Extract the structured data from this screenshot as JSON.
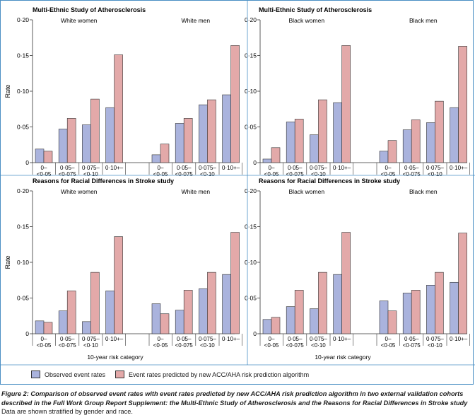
{
  "colors": {
    "observed": "#aab3dd",
    "predicted": "#e3a9a9",
    "axis": "#333333"
  },
  "chart_data": [
    {
      "type": "bar",
      "title": "Multi-Ethnic Study of Atherosclerosis",
      "ylabel": "Rate",
      "xlabel": "",
      "ylim": [
        0,
        0.2
      ],
      "yticks": [
        "0",
        "0·05",
        "0·10",
        "0·15",
        "0·20"
      ],
      "categories": [
        "0–<0·05",
        "0·05–<0·075",
        "0·075–<0·10",
        "0·10+"
      ],
      "groups": [
        {
          "name": "White women",
          "observed": [
            0.019,
            0.047,
            0.053,
            0.077
          ],
          "predicted": [
            0.016,
            0.062,
            0.089,
            0.151
          ]
        },
        {
          "name": "White men",
          "observed": [
            0.011,
            0.055,
            0.081,
            0.095
          ],
          "predicted": [
            0.026,
            0.062,
            0.088,
            0.164
          ]
        }
      ]
    },
    {
      "type": "bar",
      "title": "Multi-Ethnic Study of Atherosclerosis",
      "ylabel": "",
      "xlabel": "",
      "ylim": [
        0,
        0.2
      ],
      "yticks": [
        "0",
        "0·05",
        "0·10",
        "0·15",
        "0·20"
      ],
      "categories": [
        "0–<0·05",
        "0·05–<0·075",
        "0·075–<0·10",
        "0·10+"
      ],
      "groups": [
        {
          "name": "Black women",
          "observed": [
            0.005,
            0.057,
            0.039,
            0.084
          ],
          "predicted": [
            0.021,
            0.061,
            0.088,
            0.164
          ]
        },
        {
          "name": "Black men",
          "observed": [
            0.016,
            0.046,
            0.056,
            0.077
          ],
          "predicted": [
            0.031,
            0.06,
            0.086,
            0.163
          ]
        }
      ]
    },
    {
      "type": "bar",
      "title": "Reasons for Racial Differences in Stroke study",
      "ylabel": "Rate",
      "xlabel": "10-year risk category",
      "ylim": [
        0,
        0.2
      ],
      "yticks": [
        "0",
        "0·05",
        "0·10",
        "0·15",
        "0·20"
      ],
      "categories": [
        "0–<0·05",
        "0·05–<0·075",
        "0·075–<0·10",
        "0·10+"
      ],
      "groups": [
        {
          "name": "White women",
          "observed": [
            0.018,
            0.032,
            0.017,
            0.06
          ],
          "predicted": [
            0.016,
            0.06,
            0.086,
            0.136
          ]
        },
        {
          "name": "White men",
          "observed": [
            0.042,
            0.033,
            0.063,
            0.083
          ],
          "predicted": [
            0.028,
            0.061,
            0.086,
            0.142
          ]
        }
      ]
    },
    {
      "type": "bar",
      "title": "Reasons for Racial Differences in Stroke study",
      "ylabel": "",
      "xlabel": "10-year risk category",
      "ylim": [
        0,
        0.2
      ],
      "yticks": [
        "0",
        "0·05",
        "0·10",
        "0·15",
        "0·20"
      ],
      "categories": [
        "0–<0·05",
        "0·05–<0·075",
        "0·075–<0·10",
        "0·10+"
      ],
      "groups": [
        {
          "name": "Black women",
          "observed": [
            0.02,
            0.038,
            0.035,
            0.083
          ],
          "predicted": [
            0.023,
            0.061,
            0.086,
            0.142
          ]
        },
        {
          "name": "Black men",
          "observed": [
            0.046,
            0.057,
            0.068,
            0.072
          ],
          "predicted": [
            0.032,
            0.061,
            0.086,
            0.141
          ]
        }
      ]
    }
  ],
  "legend": {
    "observed_label": "Observed event rates",
    "predicted_label": "Event rates predicted by new ACC/AHA risk prediction algorithm"
  },
  "caption": {
    "label": "Figure 2:",
    "title": "Comparison of observed event rates with event rates predicted by new ACC/AHA risk prediction algorithm in two external validation cohorts described in the Full Work Group Report Supplement: the Multi-Ethnic Study of Atherosclerosis and the Reasons for Racial Differences in Stroke study",
    "note": "Data are shown stratified by gender and race."
  }
}
